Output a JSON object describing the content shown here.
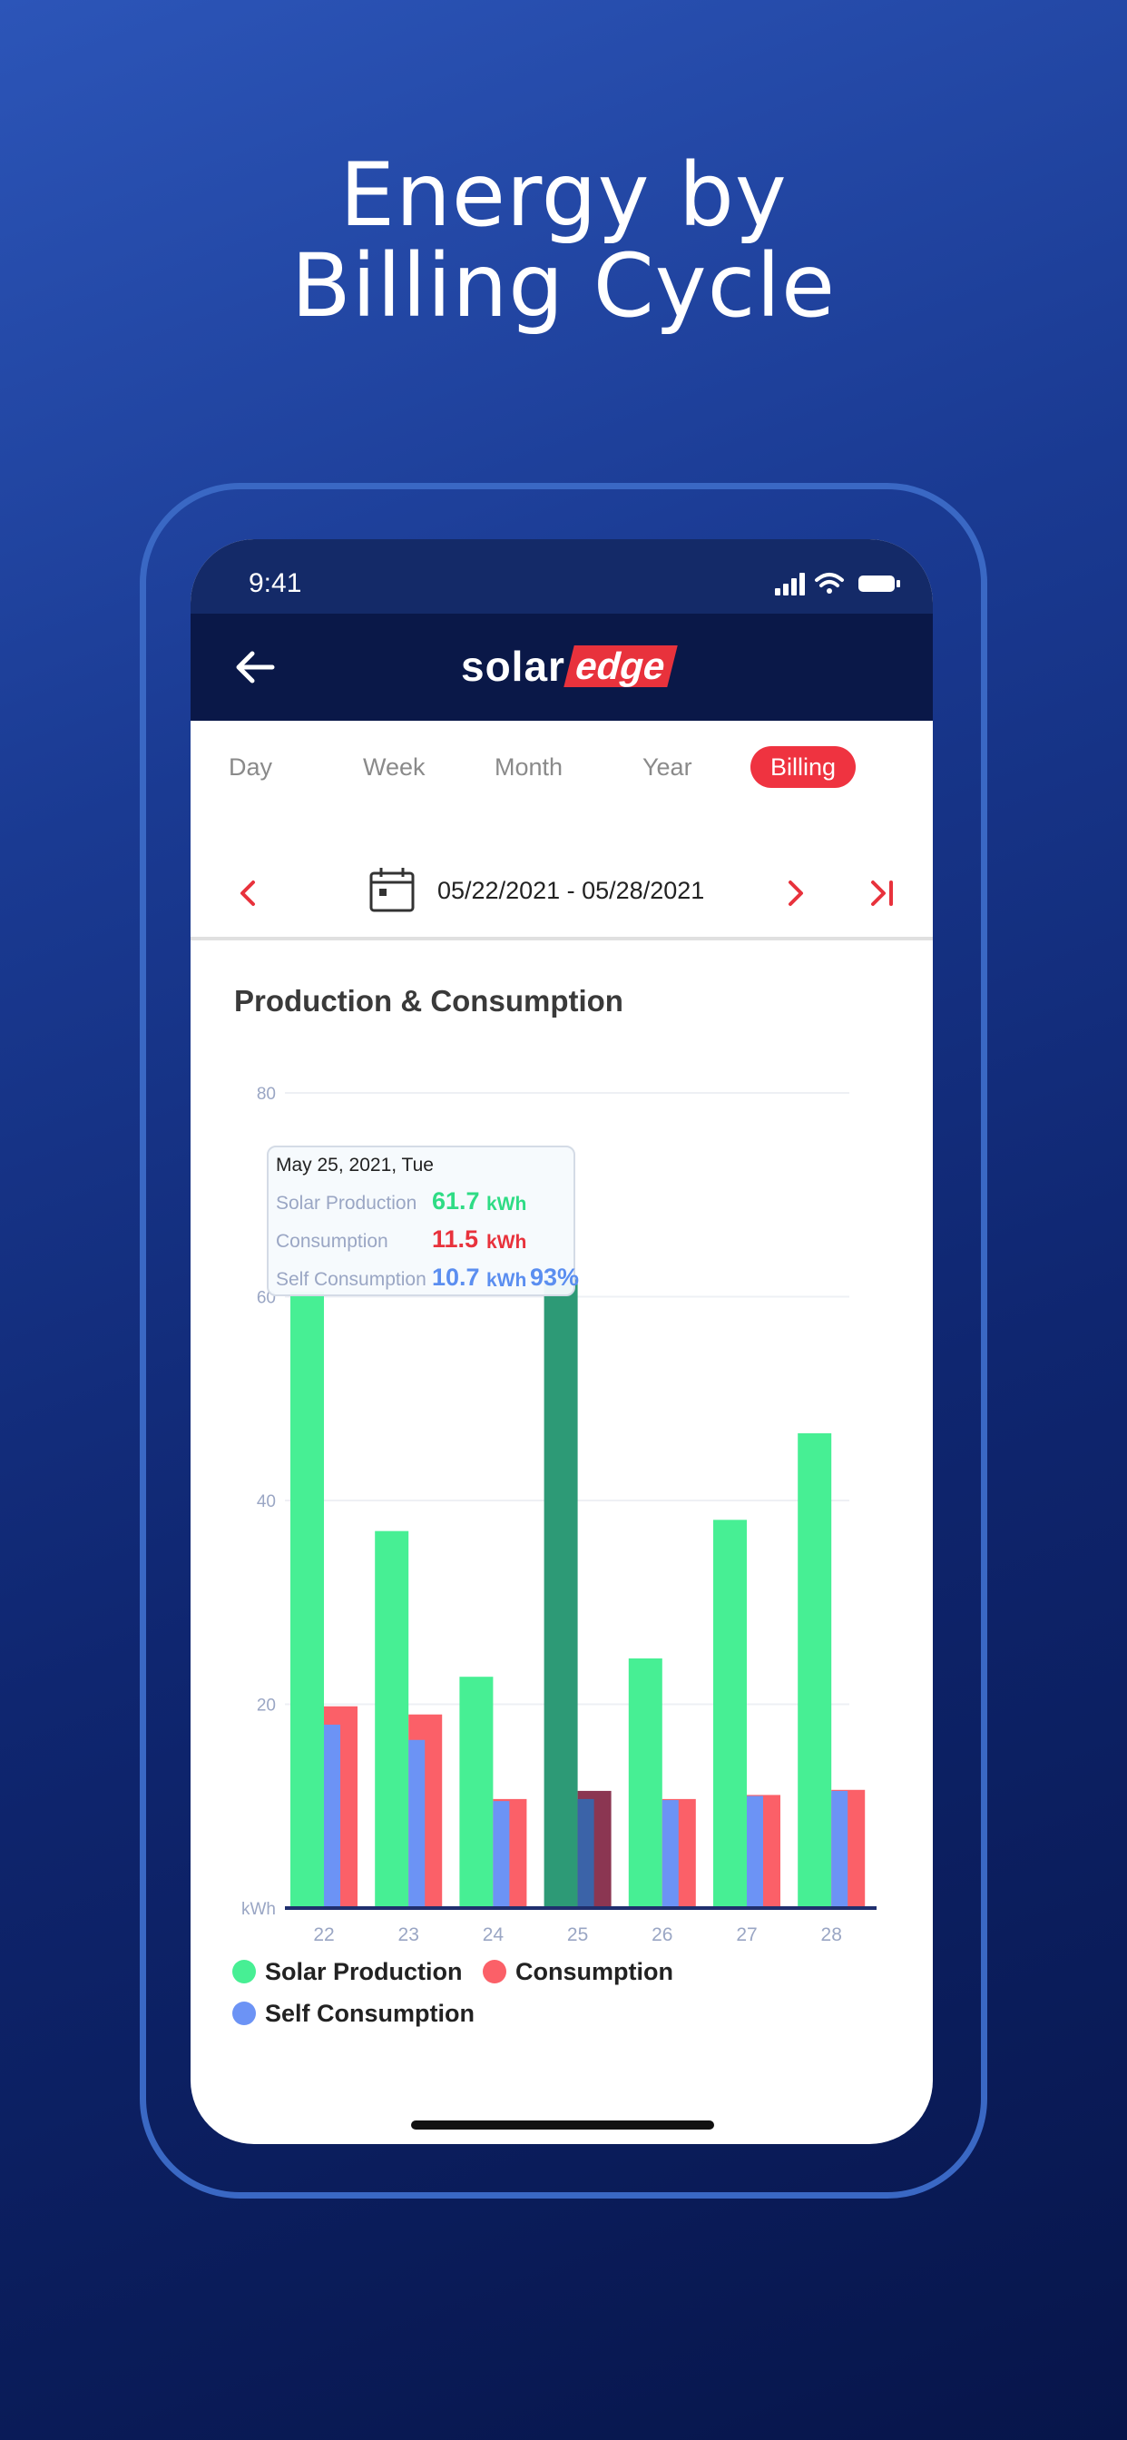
{
  "headline": {
    "line1": "Energy by",
    "line2": "Billing Cycle"
  },
  "status": {
    "time": "9:41"
  },
  "app": {
    "logo_solar": "solar",
    "logo_edge": "edge"
  },
  "tabs": [
    {
      "label": "Day",
      "active": false
    },
    {
      "label": "Week",
      "active": false
    },
    {
      "label": "Month",
      "active": false
    },
    {
      "label": "Year",
      "active": false
    },
    {
      "label": "Billing",
      "active": true
    }
  ],
  "date_range": "05/22/2021 - 05/28/2021",
  "section_title": "Production & Consumption",
  "tooltip": {
    "date": "May 25, 2021, Tue",
    "rows": [
      {
        "label": "Solar Production",
        "value": "61.7",
        "unit": "kWh",
        "extra": "",
        "color": "#2fdc85"
      },
      {
        "label": "Consumption",
        "value": "11.5",
        "unit": "kWh",
        "extra": "",
        "color": "#e8323c"
      },
      {
        "label": "Self Consumption",
        "value": "10.7",
        "unit": "kWh",
        "extra": "93%",
        "color": "#5b8ef0"
      }
    ]
  },
  "colors": {
    "solar": "#47ef94",
    "consumption": "#fb6068",
    "self": "#6c93f5",
    "solar_selected": "#2d9a76",
    "consumption_selected": "#8b3652",
    "self_selected": "#3b63a8"
  },
  "chart_data": {
    "type": "bar",
    "xlabel": "",
    "ylabel": "kWh",
    "y_ticks": [
      "kWh",
      "20",
      "40",
      "60",
      "80"
    ],
    "ylim": [
      0,
      80
    ],
    "categories": [
      "22",
      "23",
      "24",
      "25",
      "26",
      "27",
      "28"
    ],
    "selected_category": "25",
    "series": [
      {
        "name": "Solar Production",
        "values": [
          60.5,
          37.0,
          22.7,
          61.7,
          24.5,
          38.1,
          46.6
        ]
      },
      {
        "name": "Consumption",
        "values": [
          19.8,
          19.0,
          10.7,
          11.5,
          10.7,
          11.1,
          11.6
        ]
      },
      {
        "name": "Self Consumption",
        "values": [
          18.0,
          16.5,
          10.5,
          10.7,
          10.6,
          11.0,
          11.5
        ]
      }
    ],
    "grid": true,
    "legend": "bottom"
  },
  "legend": [
    {
      "label": "Solar Production",
      "color": "#47ef94"
    },
    {
      "label": "Consumption",
      "color": "#fb6068"
    },
    {
      "label": "Self Consumption",
      "color": "#6c93f5"
    }
  ]
}
